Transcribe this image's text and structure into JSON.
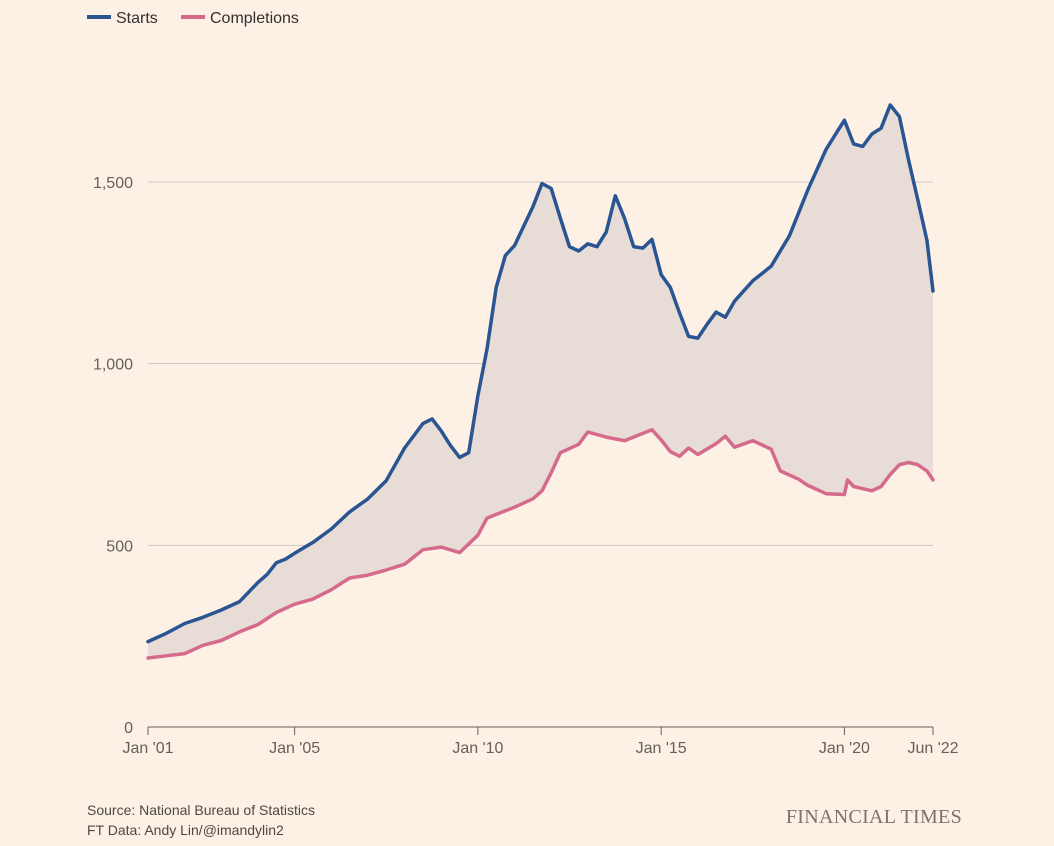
{
  "chart_data": {
    "type": "line",
    "title": "",
    "xlabel": "",
    "ylabel": "",
    "ylim": [
      0,
      1800
    ],
    "yticks": [
      0,
      500,
      1000,
      1500
    ],
    "ytick_labels": [
      "0",
      "500",
      "1,000",
      "1,500"
    ],
    "xticks": [
      {
        "date": "2001-01",
        "label": "Jan '01"
      },
      {
        "date": "2005-01",
        "label": "Jan '05"
      },
      {
        "date": "2010-01",
        "label": "Jan '10"
      },
      {
        "date": "2015-01",
        "label": "Jan '15"
      },
      {
        "date": "2020-01",
        "label": "Jan '20"
      },
      {
        "date": "2022-06",
        "label": "Jun '22"
      }
    ],
    "xrange": [
      "2001-01",
      "2022-06"
    ],
    "grid": true,
    "fill_between_series": true,
    "legend_position": "top-left",
    "series": [
      {
        "name": "Starts",
        "color": "#2a5592",
        "points": [
          [
            "2001-01",
            235
          ],
          [
            "2001-07",
            258
          ],
          [
            "2002-01",
            285
          ],
          [
            "2002-07",
            302
          ],
          [
            "2003-01",
            322
          ],
          [
            "2003-07",
            345
          ],
          [
            "2004-01",
            398
          ],
          [
            "2004-04",
            420
          ],
          [
            "2004-07",
            452
          ],
          [
            "2004-10",
            462
          ],
          [
            "2005-01",
            478
          ],
          [
            "2005-07",
            508
          ],
          [
            "2006-01",
            545
          ],
          [
            "2006-07",
            592
          ],
          [
            "2007-01",
            628
          ],
          [
            "2007-07",
            678
          ],
          [
            "2008-01",
            768
          ],
          [
            "2008-07",
            835
          ],
          [
            "2008-10",
            848
          ],
          [
            "2009-01",
            815
          ],
          [
            "2009-04",
            775
          ],
          [
            "2009-07",
            742
          ],
          [
            "2009-10",
            755
          ],
          [
            "2010-01",
            912
          ],
          [
            "2010-04",
            1040
          ],
          [
            "2010-07",
            1210
          ],
          [
            "2010-10",
            1298
          ],
          [
            "2011-01",
            1325
          ],
          [
            "2011-07",
            1432
          ],
          [
            "2011-10",
            1496
          ],
          [
            "2012-01",
            1482
          ],
          [
            "2012-04",
            1400
          ],
          [
            "2012-07",
            1322
          ],
          [
            "2012-10",
            1310
          ],
          [
            "2013-01",
            1330
          ],
          [
            "2013-04",
            1322
          ],
          [
            "2013-07",
            1362
          ],
          [
            "2013-10",
            1462
          ],
          [
            "2014-01",
            1400
          ],
          [
            "2014-04",
            1322
          ],
          [
            "2014-07",
            1318
          ],
          [
            "2014-10",
            1342
          ],
          [
            "2015-01",
            1245
          ],
          [
            "2015-04",
            1210
          ],
          [
            "2015-07",
            1140
          ],
          [
            "2015-10",
            1075
          ],
          [
            "2016-01",
            1070
          ],
          [
            "2016-04",
            1108
          ],
          [
            "2016-07",
            1142
          ],
          [
            "2016-10",
            1128
          ],
          [
            "2017-01",
            1172
          ],
          [
            "2017-07",
            1228
          ],
          [
            "2018-01",
            1268
          ],
          [
            "2018-07",
            1352
          ],
          [
            "2019-01",
            1478
          ],
          [
            "2019-07",
            1590
          ],
          [
            "2020-01",
            1670
          ],
          [
            "2020-04",
            1605
          ],
          [
            "2020-07",
            1598
          ],
          [
            "2020-10",
            1632
          ],
          [
            "2021-01",
            1648
          ],
          [
            "2021-04",
            1712
          ],
          [
            "2021-07",
            1680
          ],
          [
            "2021-10",
            1560
          ],
          [
            "2022-01",
            1452
          ],
          [
            "2022-04",
            1340
          ],
          [
            "2022-06",
            1200
          ]
        ]
      },
      {
        "name": "Completions",
        "color": "#d56a8c",
        "points": [
          [
            "2001-01",
            190
          ],
          [
            "2001-07",
            196
          ],
          [
            "2002-01",
            202
          ],
          [
            "2002-07",
            225
          ],
          [
            "2003-01",
            238
          ],
          [
            "2003-07",
            262
          ],
          [
            "2004-01",
            282
          ],
          [
            "2004-07",
            315
          ],
          [
            "2005-01",
            338
          ],
          [
            "2005-07",
            352
          ],
          [
            "2006-01",
            378
          ],
          [
            "2006-07",
            410
          ],
          [
            "2007-01",
            418
          ],
          [
            "2007-07",
            432
          ],
          [
            "2008-01",
            448
          ],
          [
            "2008-07",
            488
          ],
          [
            "2009-01",
            495
          ],
          [
            "2009-07",
            480
          ],
          [
            "2010-01",
            528
          ],
          [
            "2010-04",
            575
          ],
          [
            "2010-10",
            595
          ],
          [
            "2011-01",
            605
          ],
          [
            "2011-07",
            628
          ],
          [
            "2011-10",
            650
          ],
          [
            "2012-01",
            700
          ],
          [
            "2012-04",
            755
          ],
          [
            "2012-10",
            778
          ],
          [
            "2013-01",
            812
          ],
          [
            "2013-07",
            798
          ],
          [
            "2014-01",
            788
          ],
          [
            "2014-07",
            808
          ],
          [
            "2014-10",
            818
          ],
          [
            "2015-01",
            790
          ],
          [
            "2015-04",
            758
          ],
          [
            "2015-07",
            745
          ],
          [
            "2015-10",
            768
          ],
          [
            "2016-01",
            750
          ],
          [
            "2016-07",
            780
          ],
          [
            "2016-10",
            800
          ],
          [
            "2017-01",
            770
          ],
          [
            "2017-07",
            788
          ],
          [
            "2018-01",
            765
          ],
          [
            "2018-04",
            705
          ],
          [
            "2018-10",
            682
          ],
          [
            "2019-01",
            665
          ],
          [
            "2019-07",
            642
          ],
          [
            "2020-01",
            640
          ],
          [
            "2020-02",
            680
          ],
          [
            "2020-04",
            662
          ],
          [
            "2020-10",
            650
          ],
          [
            "2021-01",
            662
          ],
          [
            "2021-04",
            695
          ],
          [
            "2021-07",
            722
          ],
          [
            "2021-10",
            728
          ],
          [
            "2022-01",
            722
          ],
          [
            "2022-04",
            705
          ],
          [
            "2022-06",
            680
          ]
        ]
      }
    ]
  },
  "footer": {
    "source_line": "Source: National Bureau of Statistics",
    "credit_line": "FT Data: Andy Lin/@imandylin2",
    "brand": "FINANCIAL TIMES"
  }
}
